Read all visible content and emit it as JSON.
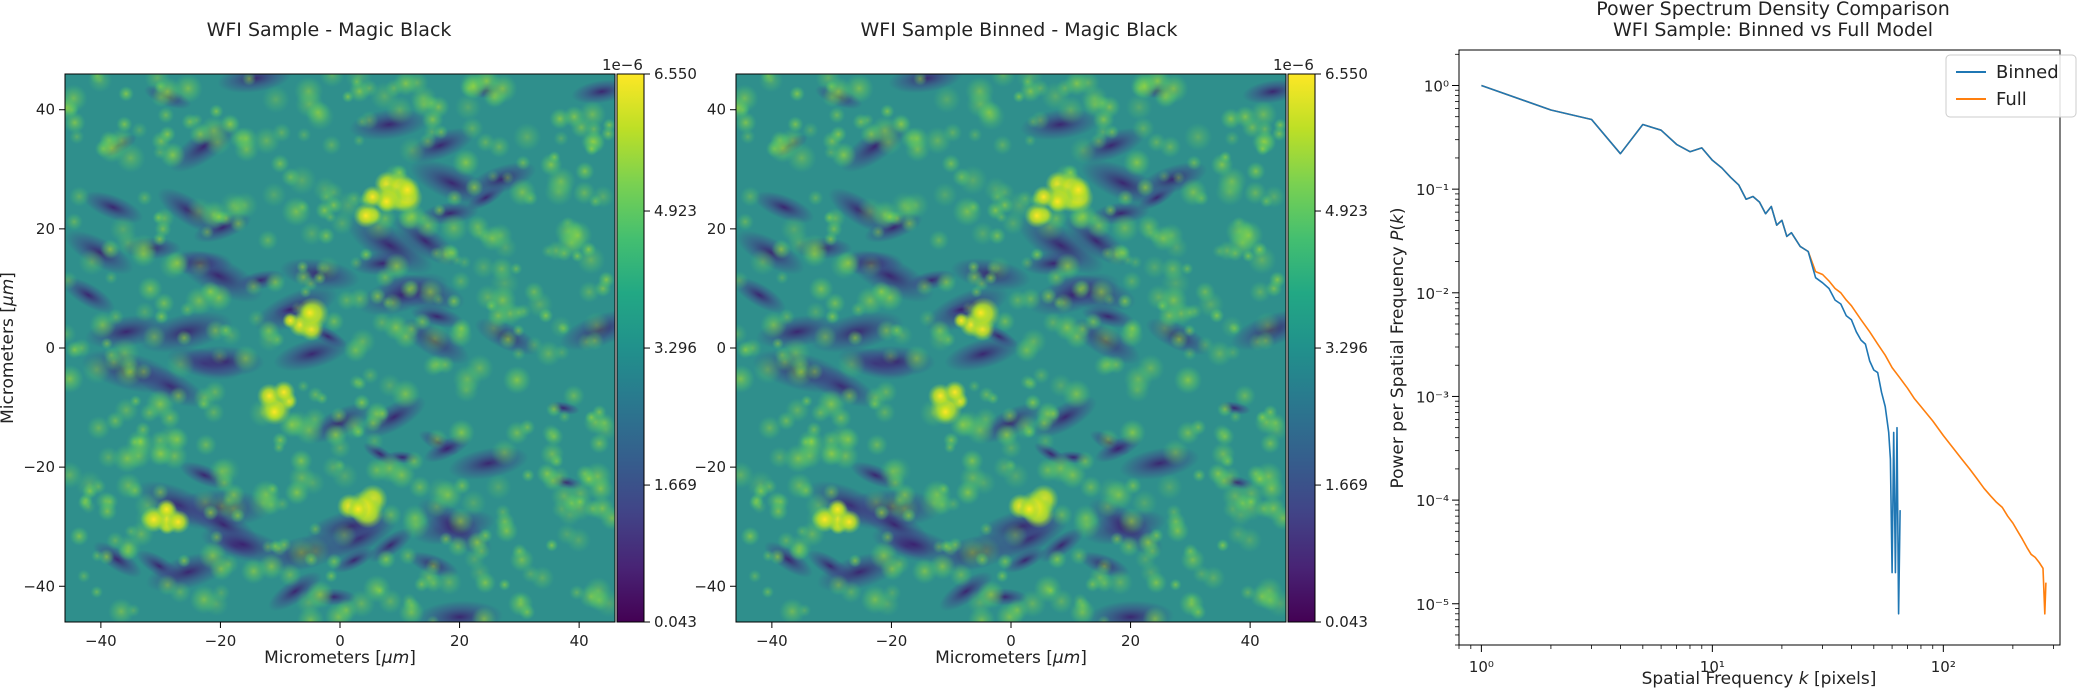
{
  "chart_data": [
    {
      "type": "heatmap",
      "title": "WFI Sample - Magic Black",
      "xlabel": "Micrometers [$\\mu m$]",
      "xlabel_parts": [
        "Micrometers [",
        "μm",
        "]"
      ],
      "ylabel_parts": [
        "Micrometers [",
        "μm",
        "]"
      ],
      "xlim": [
        -46,
        46
      ],
      "ylim": [
        -46,
        46
      ],
      "xticks": [
        -40,
        -20,
        0,
        20,
        40
      ],
      "yticks": [
        -40,
        -20,
        0,
        20,
        40
      ],
      "colormap": "viridis",
      "colorbar": {
        "exponent": "1e−6",
        "range": [
          0.043,
          6.55
        ],
        "ticks": [
          "0.043",
          "1.669",
          "3.296",
          "4.923",
          "6.550"
        ]
      },
      "bright_spots_um": [
        [
          10,
          26
        ],
        [
          6,
          24
        ],
        [
          -29,
          -28
        ],
        [
          -11,
          -9
        ],
        [
          -7,
          5
        ],
        [
          3,
          -26
        ]
      ]
    },
    {
      "type": "heatmap",
      "title": "WFI Sample Binned - Magic Black",
      "xlabel_parts": [
        "Micrometers [",
        "μm",
        "]"
      ],
      "xlim": [
        -46,
        46
      ],
      "ylim": [
        -46,
        46
      ],
      "xticks": [
        -40,
        -20,
        0,
        20,
        40
      ],
      "yticks": [
        -40,
        -20,
        0,
        20,
        40
      ],
      "colormap": "viridis",
      "colorbar": {
        "exponent": "1e−6",
        "range": [
          0.043,
          6.55
        ],
        "ticks": [
          "0.043",
          "1.669",
          "3.296",
          "4.923",
          "6.550"
        ]
      }
    },
    {
      "type": "line",
      "title_lines": [
        "Power Spectrum Density Comparison",
        "WFI Sample: Binned vs Full Model"
      ],
      "xlabel_parts": [
        "Spatial Frequency ",
        "k",
        " [pixels]"
      ],
      "ylabel_parts": [
        "Power per Spatial Frequency ",
        "P",
        "(",
        "k",
        ")"
      ],
      "xscale": "log",
      "yscale": "log",
      "xlim": [
        0.8,
        320
      ],
      "ylim": [
        4e-06,
        2.2
      ],
      "xticks": [
        {
          "value": 1,
          "label": "10⁰"
        },
        {
          "value": 10,
          "label": "10¹"
        },
        {
          "value": 100,
          "label": "10²"
        }
      ],
      "yticks": [
        {
          "value": 1,
          "label": "10⁰"
        },
        {
          "value": 0.1,
          "label": "10⁻¹"
        },
        {
          "value": 0.01,
          "label": "10⁻²"
        },
        {
          "value": 0.001,
          "label": "10⁻³"
        },
        {
          "value": 0.0001,
          "label": "10⁻⁴"
        },
        {
          "value": 1e-05,
          "label": "10⁻⁵"
        }
      ],
      "legend": "top-right",
      "series": [
        {
          "name": "Binned",
          "color": "#1f77b4",
          "points": [
            [
              1,
              1.0
            ],
            [
              2,
              0.58
            ],
            [
              3,
              0.47
            ],
            [
              4,
              0.22
            ],
            [
              5,
              0.42
            ],
            [
              6,
              0.37
            ],
            [
              7,
              0.27
            ],
            [
              8,
              0.23
            ],
            [
              9,
              0.25
            ],
            [
              10,
              0.19
            ],
            [
              11,
              0.16
            ],
            [
              12,
              0.13
            ],
            [
              13,
              0.11
            ],
            [
              14,
              0.08
            ],
            [
              15,
              0.085
            ],
            [
              16,
              0.075
            ],
            [
              17,
              0.058
            ],
            [
              18,
              0.068
            ],
            [
              19,
              0.045
            ],
            [
              20,
              0.05
            ],
            [
              21,
              0.035
            ],
            [
              22,
              0.038
            ],
            [
              24,
              0.028
            ],
            [
              26,
              0.025
            ],
            [
              28,
              0.014
            ],
            [
              30,
              0.0125
            ],
            [
              32,
              0.011
            ],
            [
              34,
              0.0085
            ],
            [
              36,
              0.0078
            ],
            [
              38,
              0.006
            ],
            [
              40,
              0.0055
            ],
            [
              42,
              0.0042
            ],
            [
              44,
              0.0035
            ],
            [
              46,
              0.0032
            ],
            [
              48,
              0.0022
            ],
            [
              50,
              0.0018
            ],
            [
              52,
              0.0017
            ],
            [
              54,
              0.0011
            ],
            [
              56,
              0.0008
            ],
            [
              58,
              0.00045
            ],
            [
              59,
              0.00025
            ],
            [
              60,
              2e-05
            ],
            [
              61,
              0.00045
            ],
            [
              62,
              2e-05
            ],
            [
              63,
              0.0005
            ],
            [
              64,
              8e-06
            ],
            [
              65,
              8e-05
            ]
          ]
        },
        {
          "name": "Full",
          "color": "#ff7f0e",
          "points": [
            [
              1,
              1.0
            ],
            [
              2,
              0.58
            ],
            [
              3,
              0.47
            ],
            [
              4,
              0.22
            ],
            [
              5,
              0.42
            ],
            [
              6,
              0.37
            ],
            [
              7,
              0.27
            ],
            [
              8,
              0.23
            ],
            [
              9,
              0.25
            ],
            [
              10,
              0.19
            ],
            [
              11,
              0.16
            ],
            [
              12,
              0.13
            ],
            [
              13,
              0.11
            ],
            [
              14,
              0.08
            ],
            [
              15,
              0.085
            ],
            [
              16,
              0.075
            ],
            [
              17,
              0.058
            ],
            [
              18,
              0.068
            ],
            [
              19,
              0.045
            ],
            [
              20,
              0.05
            ],
            [
              21,
              0.035
            ],
            [
              22,
              0.038
            ],
            [
              24,
              0.028
            ],
            [
              26,
              0.025
            ],
            [
              28,
              0.016
            ],
            [
              30,
              0.015
            ],
            [
              32,
              0.013
            ],
            [
              34,
              0.011
            ],
            [
              36,
              0.01
            ],
            [
              38,
              0.0085
            ],
            [
              40,
              0.0075
            ],
            [
              44,
              0.0055
            ],
            [
              48,
              0.0042
            ],
            [
              52,
              0.0032
            ],
            [
              56,
              0.0025
            ],
            [
              60,
              0.0019
            ],
            [
              65,
              0.0015
            ],
            [
              70,
              0.0012
            ],
            [
              75,
              0.00095
            ],
            [
              80,
              0.0008
            ],
            [
              90,
              0.00058
            ],
            [
              100,
              0.00042
            ],
            [
              110,
              0.00032
            ],
            [
              120,
              0.00025
            ],
            [
              130,
              0.0002
            ],
            [
              140,
              0.00016
            ],
            [
              150,
              0.00013
            ],
            [
              160,
              0.00011
            ],
            [
              170,
              9.5e-05
            ],
            [
              180,
              8.5e-05
            ],
            [
              190,
              7e-05
            ],
            [
              200,
              6e-05
            ],
            [
              210,
              5e-05
            ],
            [
              220,
              4.2e-05
            ],
            [
              230,
              3.5e-05
            ],
            [
              240,
              3e-05
            ],
            [
              250,
              2.8e-05
            ],
            [
              260,
              2.5e-05
            ],
            [
              270,
              2.2e-05
            ],
            [
              275,
              8e-06
            ],
            [
              278,
              1.6e-05
            ]
          ]
        }
      ]
    }
  ]
}
